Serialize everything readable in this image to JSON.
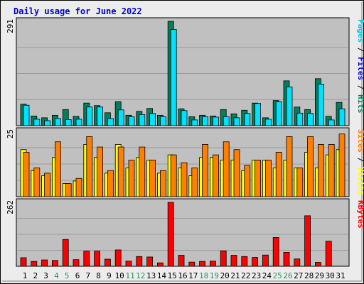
{
  "page_title": "Daily usage for June 2022",
  "colors": {
    "page_bg": "#ececec",
    "plot_bg": "#c0c0c0",
    "grid": "#9c9c9c",
    "title": "#0000cc",
    "weekday_label": "#000000",
    "weekend_label": "#2f8f5f",
    "hits": "#00805c",
    "files": "#00e0ff",
    "pages": "#00c8d8",
    "visits": "#ffff00",
    "sites": "#ff8000",
    "kbytes": "#ff0000"
  },
  "chart_data": [
    {
      "type": "bar",
      "title": "Daily usage for June 2022",
      "panel": "top",
      "max_label": "291",
      "ylim": [
        0,
        291
      ],
      "grid": true,
      "categories": [
        "1",
        "2",
        "3",
        "4",
        "5",
        "6",
        "7",
        "8",
        "9",
        "10",
        "11",
        "12",
        "13",
        "14",
        "15",
        "16",
        "17",
        "18",
        "19",
        "20",
        "21",
        "22",
        "23",
        "24",
        "25",
        "26",
        "27",
        "28",
        "29",
        "30",
        "31"
      ],
      "weekend_days": [
        4,
        5,
        11,
        12,
        18,
        19,
        25,
        26
      ],
      "legend": [
        {
          "text": "Pages",
          "color": "#00c8d8"
        },
        {
          "text": " / ",
          "color": "#000000"
        },
        {
          "text": "Files",
          "color": "#0000cc"
        },
        {
          "text": " / ",
          "color": "#000000"
        },
        {
          "text": "Hits",
          "color": "#00805c"
        }
      ],
      "series": [
        {
          "name": "Hits",
          "color": "#00805c",
          "values": [
            60,
            27,
            22,
            29,
            45,
            26,
            63,
            56,
            36,
            67,
            29,
            40,
            48,
            29,
            291,
            47,
            25,
            29,
            27,
            45,
            33,
            43,
            63,
            22,
            70,
            125,
            52,
            45,
            131,
            26,
            65
          ]
        },
        {
          "name": "Files",
          "color": "#00e0ff",
          "values": [
            57,
            18,
            14,
            20,
            17,
            18,
            52,
            52,
            20,
            44,
            25,
            31,
            34,
            25,
            268,
            42,
            16,
            25,
            24,
            25,
            22,
            34,
            62,
            18,
            67,
            108,
            35,
            34,
            116,
            16,
            47
          ]
        }
      ]
    },
    {
      "type": "bar",
      "panel": "middle",
      "max_label": "25",
      "ylim": [
        0,
        25
      ],
      "grid": true,
      "legend": [
        {
          "text": "Sites",
          "color": "#ff8000"
        },
        {
          "text": " / ",
          "color": "#000000"
        },
        {
          "text": "Visits",
          "color": "#ffff00"
        }
      ],
      "series": [
        {
          "name": "Visits",
          "color": "#ffff00",
          "values": [
            18,
            10,
            8,
            15,
            5,
            6,
            20,
            15,
            9,
            20,
            11,
            15,
            14,
            9,
            16,
            11,
            8,
            15,
            15,
            14,
            14,
            10,
            14,
            14,
            11,
            14,
            11,
            17,
            11,
            16,
            18
          ]
        },
        {
          "name": "Sites",
          "color": "#ff8000",
          "values": [
            17,
            11,
            9,
            21,
            5,
            7,
            23,
            19,
            10,
            19,
            14,
            19,
            14,
            10,
            16,
            13,
            11,
            20,
            16,
            21,
            18,
            12,
            14,
            14,
            17,
            23,
            11,
            23,
            20,
            20,
            24
          ]
        }
      ]
    },
    {
      "type": "bar",
      "panel": "bottom",
      "max_label": "262",
      "ylim": [
        0,
        262
      ],
      "grid": true,
      "legend": [
        {
          "text": "KBytes",
          "color": "#ff0000"
        }
      ],
      "series": [
        {
          "name": "KBytes",
          "color": "#ff0000",
          "values": [
            35,
            20,
            26,
            24,
            110,
            27,
            62,
            62,
            29,
            67,
            21,
            40,
            38,
            14,
            262,
            45,
            17,
            20,
            21,
            63,
            45,
            40,
            36,
            46,
            118,
            57,
            30,
            207,
            16,
            103,
            0
          ]
        }
      ]
    }
  ]
}
